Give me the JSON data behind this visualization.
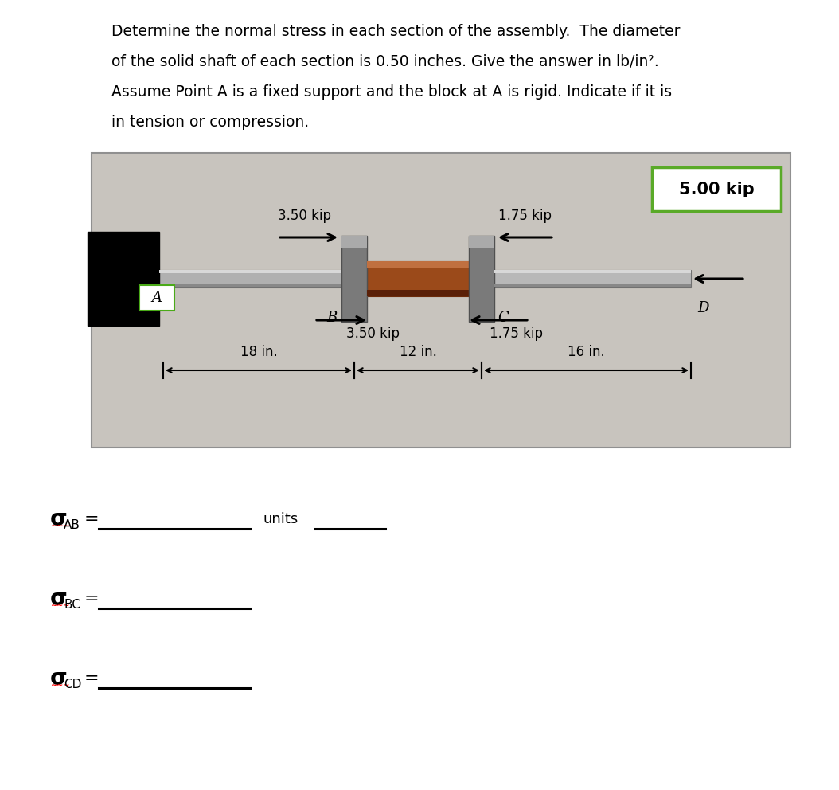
{
  "title_text_line1": "Determine the normal stress in each section of the assembly.  The diameter",
  "title_text_line2": "of the solid shaft of each section is 0.50 inches. Give the answer in lb/in².",
  "title_text_line3": "Assume Point A is a fixed support and the block at A is rigid. Indicate if it is",
  "title_text_line4": "in tension or compression.",
  "diagram_bg": "#c8c4be",
  "force_3_50_top": "3.50 kip",
  "force_1_75_top": "1.75 kip",
  "force_5_00_box": "5.00 kip",
  "force_3_50_bot": "3.50 kip",
  "force_1_75_bot": "1.75 kip",
  "dim_18": "18 in.",
  "dim_12": "12 in.",
  "dim_16": "16 in.",
  "units_label": "units",
  "white_box_border": "#5aaa28",
  "figsize": [
    10.54,
    9.92
  ],
  "dpi": 100
}
